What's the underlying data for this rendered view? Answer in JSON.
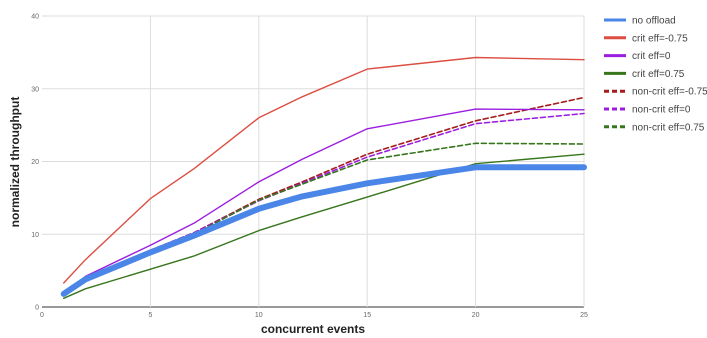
{
  "chart_data": {
    "type": "line",
    "xlabel": "concurrent events",
    "ylabel": "normalized throughput",
    "xlim": [
      0,
      25
    ],
    "ylim": [
      0,
      40
    ],
    "x_ticks": [
      0,
      5,
      10,
      15,
      20,
      25
    ],
    "y_ticks": [
      0,
      10,
      20,
      30,
      40
    ],
    "grid": true,
    "legend_position": "right",
    "series": [
      {
        "name": "no offload",
        "color": "#4a86e8",
        "style": "solid",
        "weight": "thick",
        "x": [
          1,
          2,
          5,
          7,
          10,
          12,
          15,
          20,
          25
        ],
        "y": [
          1.8,
          3.8,
          7.5,
          9.8,
          13.5,
          15.2,
          17.0,
          19.2,
          19.2
        ]
      },
      {
        "name": "crit  eff=-0.75",
        "color": "#dc4e41",
        "style": "solid",
        "weight": "thin",
        "x": [
          1,
          2,
          5,
          7,
          10,
          12,
          15,
          20,
          25
        ],
        "y": [
          3.3,
          6.5,
          14.9,
          19.0,
          26.0,
          28.9,
          32.7,
          34.3,
          34.0
        ]
      },
      {
        "name": "crit  eff=0",
        "color": "#9b1ee0",
        "style": "solid",
        "weight": "thin",
        "x": [
          1,
          2,
          5,
          7,
          10,
          12,
          15,
          20,
          25
        ],
        "y": [
          1.8,
          4.2,
          8.5,
          11.5,
          17.2,
          20.3,
          24.5,
          27.2,
          27.1
        ]
      },
      {
        "name": "crit  eff=0.75",
        "color": "#38761d",
        "style": "solid",
        "weight": "thin",
        "x": [
          1,
          2,
          5,
          7,
          10,
          12,
          15,
          20,
          25
        ],
        "y": [
          1.2,
          2.5,
          5.2,
          7.0,
          10.5,
          12.4,
          15.1,
          19.7,
          21.0
        ]
      },
      {
        "name": "non-crit  eff=-0.75",
        "color": "#a61c1c",
        "style": "dashed",
        "weight": "thin",
        "x": [
          1,
          2,
          5,
          7,
          10,
          12,
          15,
          20,
          25
        ],
        "y": [
          1.8,
          3.9,
          7.8,
          10.2,
          14.8,
          17.2,
          21.0,
          25.6,
          28.8
        ]
      },
      {
        "name": "non-crit  eff=0",
        "color": "#9b1ee0",
        "style": "dashed",
        "weight": "thin",
        "x": [
          1,
          2,
          5,
          7,
          10,
          12,
          15,
          20,
          25
        ],
        "y": [
          1.8,
          3.9,
          7.8,
          10.2,
          14.6,
          17.0,
          20.6,
          25.2,
          26.6
        ]
      },
      {
        "name": "non-crit  eff=0.75",
        "color": "#38761d",
        "style": "dashed",
        "weight": "thin",
        "x": [
          1,
          2,
          5,
          7,
          10,
          12,
          15,
          20,
          25
        ],
        "y": [
          1.8,
          3.8,
          7.6,
          10.0,
          14.7,
          16.9,
          20.2,
          22.5,
          22.4
        ]
      }
    ]
  }
}
